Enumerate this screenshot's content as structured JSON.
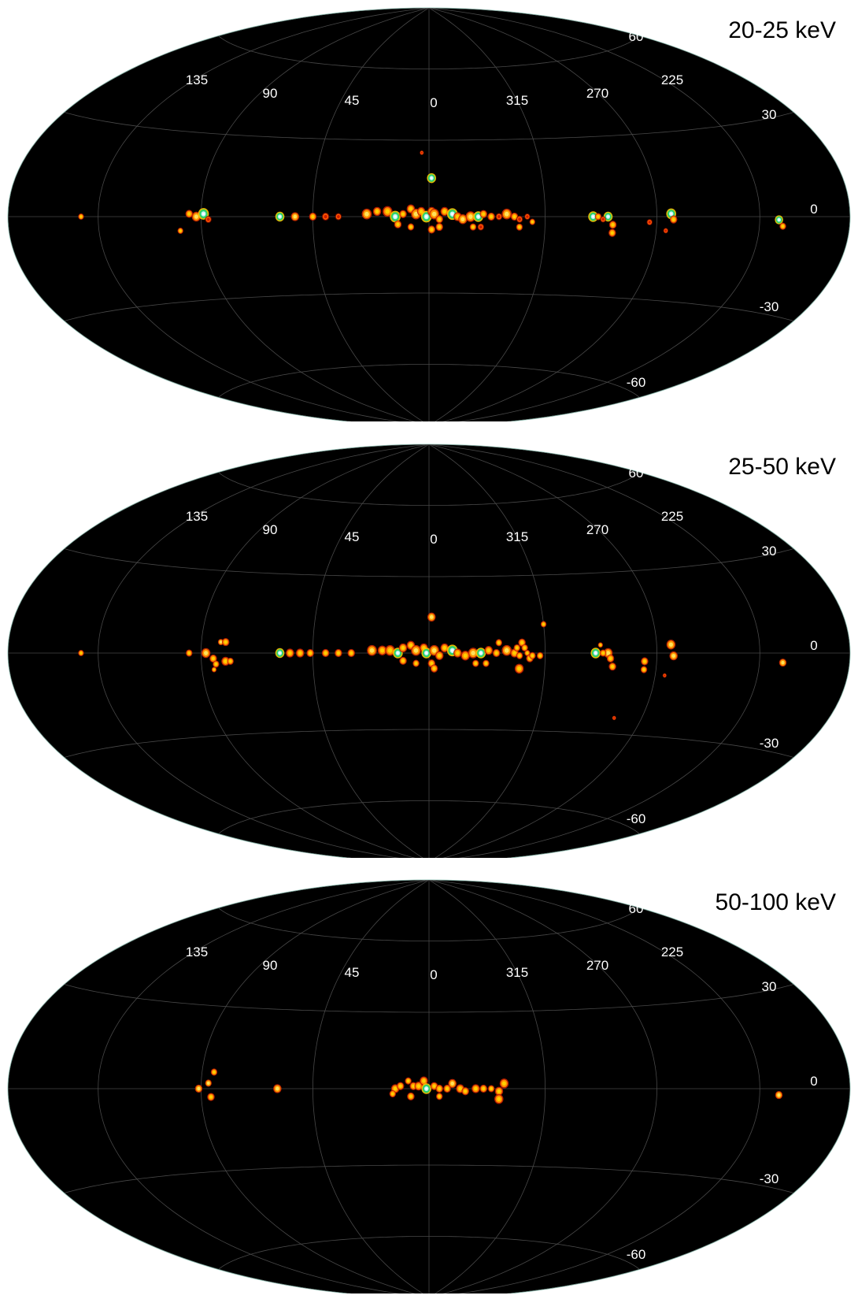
{
  "maps": [
    {
      "title": "20-25 keV",
      "sources": [
        [
          143,
          0,
          0.7,
          1
        ],
        [
          95,
          1,
          0.9,
          1
        ],
        [
          92,
          0,
          1.1,
          2
        ],
        [
          89,
          1,
          1.3,
          3
        ],
        [
          87,
          -1,
          0.8,
          0
        ],
        [
          99,
          -5,
          0.7,
          1
        ],
        [
          58,
          0,
          1.1,
          3
        ],
        [
          52,
          0,
          1,
          2
        ],
        [
          45,
          0,
          0.9,
          1
        ],
        [
          40,
          0,
          0.9,
          0
        ],
        [
          35,
          0,
          0.8,
          0
        ],
        [
          24,
          1,
          1.2,
          2
        ],
        [
          20,
          2,
          1,
          1
        ],
        [
          16,
          2,
          1.2,
          1
        ],
        [
          13,
          0,
          1.3,
          3
        ],
        [
          10,
          1,
          0.9,
          1
        ],
        [
          7,
          3,
          1,
          1
        ],
        [
          5,
          1,
          1.2,
          2
        ],
        [
          3,
          2,
          1,
          1
        ],
        [
          1,
          0,
          1.3,
          3
        ],
        [
          -1,
          2,
          1,
          1
        ],
        [
          -2,
          1,
          1.2,
          2
        ],
        [
          -4,
          -1,
          0.9,
          1
        ],
        [
          -6,
          2,
          1,
          1
        ],
        [
          -9,
          1,
          1.3,
          3
        ],
        [
          -11,
          0,
          1,
          1
        ],
        [
          -13,
          -1,
          1.1,
          2
        ],
        [
          -16,
          0,
          1.2,
          2
        ],
        [
          -19,
          0,
          1.2,
          3
        ],
        [
          -21,
          1,
          0.9,
          1
        ],
        [
          -24,
          0,
          0.9,
          1
        ],
        [
          -27,
          0,
          0.8,
          0
        ],
        [
          -30,
          1,
          1.2,
          2
        ],
        [
          -33,
          0,
          0.9,
          1
        ],
        [
          -35,
          -1,
          0.8,
          0
        ],
        [
          -38,
          0,
          0.7,
          0
        ],
        [
          12,
          -3,
          0.9,
          1
        ],
        [
          -4,
          -4,
          0.9,
          1
        ],
        [
          -1,
          -5,
          0.9,
          1
        ],
        [
          7,
          -4,
          0.8,
          1
        ],
        [
          -17,
          -4,
          0.8,
          1
        ],
        [
          -20,
          -4,
          0.8,
          0
        ],
        [
          -35,
          -4,
          0.8,
          1
        ],
        [
          -40,
          -2,
          0.7,
          1
        ],
        [
          -1,
          15,
          1.1,
          3
        ],
        [
          3,
          25,
          0.5,
          0
        ],
        [
          -64,
          0,
          1.2,
          3
        ],
        [
          -70,
          0,
          1.1,
          3
        ],
        [
          -72,
          -3,
          0.9,
          1
        ],
        [
          -72,
          -6,
          0.9,
          1
        ],
        [
          -66,
          0,
          0.8,
          1
        ],
        [
          -68,
          -1,
          0.7,
          0
        ],
        [
          -87,
          -2,
          0.7,
          0
        ],
        [
          -96,
          1,
          1.2,
          3
        ],
        [
          -97,
          -1,
          0.9,
          1
        ],
        [
          -94,
          -5,
          0.6,
          0
        ],
        [
          -144,
          -1,
          1,
          3
        ],
        [
          -146,
          -3,
          0.8,
          1
        ]
      ]
    },
    {
      "title": "25-50 keV",
      "sources": [
        [
          143,
          0,
          0.7,
          1
        ],
        [
          95,
          0,
          0.8,
          1
        ],
        [
          88,
          0,
          1.1,
          2
        ],
        [
          82,
          4,
          0.7,
          2
        ],
        [
          85,
          -2,
          0.9,
          1
        ],
        [
          84,
          -4,
          0.8,
          1
        ],
        [
          80,
          -3,
          1,
          1
        ],
        [
          78,
          -3,
          0.8,
          1
        ],
        [
          80,
          4,
          0.9,
          1
        ],
        [
          85,
          -6,
          0.6,
          1
        ],
        [
          58,
          0,
          1.1,
          3
        ],
        [
          54,
          0,
          1,
          1
        ],
        [
          50,
          0,
          1,
          1
        ],
        [
          46,
          0,
          0.9,
          1
        ],
        [
          40,
          0,
          0.9,
          1
        ],
        [
          35,
          0,
          0.9,
          1
        ],
        [
          30,
          0,
          0.9,
          1
        ],
        [
          22,
          1,
          1.2,
          2
        ],
        [
          18,
          1,
          1.1,
          1
        ],
        [
          15,
          1,
          1.2,
          1
        ],
        [
          12,
          0,
          1.2,
          3
        ],
        [
          10,
          2,
          1,
          1
        ],
        [
          7,
          3,
          1,
          1
        ],
        [
          5,
          1,
          1.2,
          2
        ],
        [
          2,
          2,
          1,
          1
        ],
        [
          1,
          0,
          1.2,
          3
        ],
        [
          -2,
          1,
          1.2,
          2
        ],
        [
          -4,
          -1,
          1,
          1
        ],
        [
          -6,
          2,
          1,
          1
        ],
        [
          -9,
          1,
          1.3,
          3
        ],
        [
          -11,
          0,
          1,
          1
        ],
        [
          -14,
          -1,
          1.1,
          1
        ],
        [
          -17,
          0,
          1.2,
          2
        ],
        [
          -20,
          0,
          1.2,
          3
        ],
        [
          -23,
          1,
          1,
          1
        ],
        [
          -26,
          0,
          0.9,
          1
        ],
        [
          -27,
          4,
          0.8,
          1
        ],
        [
          -30,
          1,
          1.2,
          2
        ],
        [
          -33,
          0,
          1,
          1
        ],
        [
          -35,
          -1,
          0.8,
          1
        ],
        [
          -38,
          0,
          0.7,
          1
        ],
        [
          -36,
          4,
          0.9,
          1
        ],
        [
          -37,
          2,
          0.8,
          1
        ],
        [
          -34,
          2,
          0.8,
          1
        ],
        [
          -39,
          -2,
          0.9,
          1
        ],
        [
          -43,
          -1,
          0.8,
          1
        ],
        [
          -40,
          -1,
          0.8,
          1
        ],
        [
          -35,
          -6,
          1.1,
          1
        ],
        [
          10,
          -3,
          0.9,
          1
        ],
        [
          -1,
          -4,
          0.9,
          1
        ],
        [
          -2,
          -6,
          0.9,
          1
        ],
        [
          5,
          -4,
          0.8,
          1
        ],
        [
          -18,
          -4,
          0.8,
          1
        ],
        [
          -22,
          -4,
          0.8,
          1
        ],
        [
          -45,
          11,
          0.7,
          1
        ],
        [
          -1,
          14,
          1,
          2
        ],
        [
          -65,
          0,
          1.2,
          3
        ],
        [
          -70,
          0,
          1.1,
          2
        ],
        [
          -71,
          -2,
          0.9,
          1
        ],
        [
          -72,
          -5,
          0.9,
          1
        ],
        [
          -68,
          0,
          0.8,
          1
        ],
        [
          -67,
          3,
          0.6,
          1
        ],
        [
          -85,
          -3,
          0.9,
          1
        ],
        [
          -85,
          -6,
          0.8,
          1
        ],
        [
          -96,
          3,
          1.1,
          2
        ],
        [
          -97,
          -1,
          1,
          2
        ],
        [
          -94,
          -8,
          0.5,
          0
        ],
        [
          -78,
          -24,
          0.5,
          0
        ],
        [
          -146,
          -3,
          0.9,
          2
        ]
      ]
    },
    {
      "title": "50-100 keV",
      "sources": [
        [
          91,
          0,
          0.9,
          2
        ],
        [
          87,
          2,
          0.8,
          2
        ],
        [
          85,
          6,
          0.8,
          1
        ],
        [
          86,
          -3,
          0.9,
          1
        ],
        [
          59,
          0,
          1,
          2
        ],
        [
          13,
          0,
          1,
          1
        ],
        [
          14,
          -2,
          0.8,
          1
        ],
        [
          11,
          1,
          0.9,
          1
        ],
        [
          8,
          3,
          0.8,
          1
        ],
        [
          6,
          1,
          0.9,
          1
        ],
        [
          4,
          1,
          1,
          1
        ],
        [
          2,
          3,
          1,
          1
        ],
        [
          1,
          0,
          1.2,
          3
        ],
        [
          -2,
          1,
          0.9,
          1
        ],
        [
          -4,
          0,
          0.9,
          1
        ],
        [
          -7,
          0,
          0.9,
          1
        ],
        [
          -9,
          2,
          1,
          2
        ],
        [
          -12,
          0,
          1,
          1
        ],
        [
          -14,
          -1,
          0.9,
          1
        ],
        [
          -18,
          0,
          1,
          1
        ],
        [
          -21,
          0,
          0.9,
          1
        ],
        [
          -24,
          0,
          0.8,
          1
        ],
        [
          -27,
          -1,
          1,
          1
        ],
        [
          -29,
          2,
          1.1,
          1
        ],
        [
          -27,
          -4,
          1.1,
          1
        ],
        [
          -4,
          -3,
          0.8,
          1
        ],
        [
          7,
          -3,
          0.9,
          1
        ],
        [
          -144,
          -2,
          0.9,
          2
        ]
      ]
    }
  ]
}
